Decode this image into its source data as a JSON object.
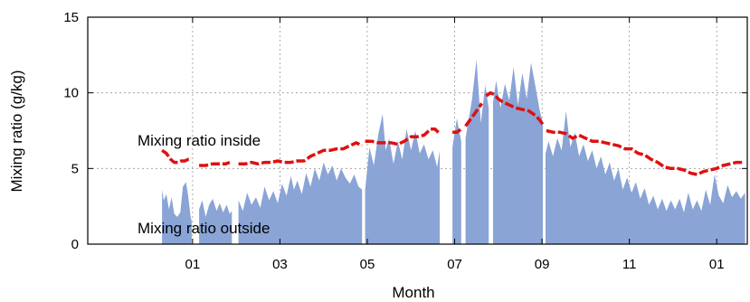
{
  "chart_data": {
    "type": "area",
    "xlabel": "Month",
    "ylabel": "Mixing ratio (g/kg)",
    "ylim": [
      0,
      15
    ],
    "yticks": [
      0,
      5,
      10,
      15
    ],
    "xlim": [
      10.6,
      25.7
    ],
    "xticks": [
      {
        "value": 13,
        "label": "01"
      },
      {
        "value": 15,
        "label": "03"
      },
      {
        "value": 17,
        "label": "05"
      },
      {
        "value": 19,
        "label": "07"
      },
      {
        "value": 21,
        "label": "09"
      },
      {
        "value": 23,
        "label": "11"
      },
      {
        "value": 25,
        "label": "01"
      }
    ],
    "grid": true,
    "colors": {
      "outside": "#8aa4d6",
      "inside": "#dd1111"
    },
    "annotations": {
      "inside": "Mixing ratio inside",
      "outside": "Mixing ratio outside"
    },
    "series": [
      {
        "key": "outside",
        "type": "area",
        "segments": [
          [
            [
              12.3,
              3.6
            ],
            [
              12.34,
              2.9
            ],
            [
              12.4,
              3.3
            ],
            [
              12.46,
              2.3
            ],
            [
              12.52,
              3.1
            ],
            [
              12.58,
              2.0
            ],
            [
              12.65,
              1.8
            ],
            [
              12.72,
              2.1
            ],
            [
              12.78,
              3.8
            ],
            [
              12.85,
              4.1
            ],
            [
              12.9,
              3.2
            ],
            [
              12.95,
              1.9
            ],
            [
              12.98,
              1.5
            ]
          ],
          [
            [
              13.15,
              2.3
            ],
            [
              13.22,
              2.9
            ],
            [
              13.3,
              1.8
            ],
            [
              13.38,
              2.6
            ],
            [
              13.46,
              3.0
            ],
            [
              13.55,
              2.2
            ],
            [
              13.62,
              2.7
            ],
            [
              13.7,
              2.1
            ],
            [
              13.78,
              2.6
            ],
            [
              13.85,
              2.0
            ],
            [
              13.9,
              2.2
            ]
          ],
          [
            [
              14.05,
              2.9
            ],
            [
              14.15,
              2.2
            ],
            [
              14.25,
              3.4
            ],
            [
              14.35,
              2.6
            ],
            [
              14.45,
              3.1
            ],
            [
              14.55,
              2.4
            ],
            [
              14.65,
              3.8
            ],
            [
              14.75,
              2.9
            ],
            [
              14.85,
              3.5
            ],
            [
              14.95,
              2.7
            ],
            [
              15.05,
              4.0
            ],
            [
              15.15,
              3.2
            ],
            [
              15.25,
              4.5
            ],
            [
              15.32,
              3.6
            ],
            [
              15.4,
              4.2
            ],
            [
              15.5,
              3.3
            ],
            [
              15.6,
              4.7
            ],
            [
              15.7,
              3.8
            ],
            [
              15.8,
              5.0
            ],
            [
              15.9,
              4.2
            ],
            [
              16.0,
              5.4
            ],
            [
              16.1,
              4.6
            ],
            [
              16.2,
              5.2
            ],
            [
              16.3,
              4.2
            ],
            [
              16.4,
              5.0
            ],
            [
              16.5,
              4.4
            ],
            [
              16.6,
              4.0
            ],
            [
              16.7,
              4.6
            ],
            [
              16.8,
              3.8
            ],
            [
              16.88,
              3.6
            ]
          ],
          [
            [
              16.95,
              3.6
            ],
            [
              17.05,
              6.4
            ],
            [
              17.15,
              5.2
            ],
            [
              17.25,
              7.2
            ],
            [
              17.35,
              8.6
            ],
            [
              17.42,
              6.2
            ],
            [
              17.5,
              7.0
            ],
            [
              17.6,
              5.3
            ],
            [
              17.7,
              6.8
            ],
            [
              17.8,
              5.6
            ],
            [
              17.9,
              7.6
            ],
            [
              18.0,
              6.2
            ],
            [
              18.1,
              7.5
            ],
            [
              18.2,
              6.0
            ],
            [
              18.3,
              6.6
            ],
            [
              18.4,
              5.6
            ],
            [
              18.5,
              6.2
            ],
            [
              18.6,
              5.1
            ],
            [
              18.66,
              6.2
            ]
          ],
          [
            [
              18.95,
              6.4
            ],
            [
              19.05,
              8.3
            ],
            [
              19.15,
              6.8
            ]
          ],
          [
            [
              19.25,
              7.0
            ],
            [
              19.4,
              9.6
            ],
            [
              19.5,
              12.2
            ],
            [
              19.6,
              8.0
            ],
            [
              19.7,
              10.5
            ],
            [
              19.78,
              9.0
            ]
          ],
          [
            [
              19.88,
              9.4
            ],
            [
              19.95,
              10.8
            ],
            [
              20.05,
              9.0
            ],
            [
              20.15,
              10.6
            ],
            [
              20.25,
              9.5
            ],
            [
              20.35,
              11.7
            ],
            [
              20.45,
              9.2
            ],
            [
              20.55,
              11.3
            ],
            [
              20.65,
              9.6
            ],
            [
              20.75,
              12.0
            ],
            [
              20.85,
              10.4
            ],
            [
              20.95,
              8.8
            ],
            [
              21.02,
              8.0
            ]
          ],
          [
            [
              21.08,
              6.0
            ],
            [
              21.15,
              6.8
            ],
            [
              21.25,
              5.8
            ],
            [
              21.35,
              7.0
            ],
            [
              21.45,
              6.2
            ],
            [
              21.55,
              8.8
            ],
            [
              21.65,
              6.4
            ],
            [
              21.75,
              7.4
            ],
            [
              21.85,
              5.8
            ],
            [
              21.95,
              6.6
            ],
            [
              22.05,
              5.5
            ],
            [
              22.15,
              6.2
            ],
            [
              22.25,
              5.0
            ],
            [
              22.35,
              5.8
            ],
            [
              22.45,
              4.6
            ],
            [
              22.55,
              5.4
            ],
            [
              22.65,
              4.2
            ],
            [
              22.75,
              5.0
            ],
            [
              22.85,
              3.6
            ],
            [
              22.95,
              4.4
            ],
            [
              23.05,
              3.4
            ],
            [
              23.15,
              4.1
            ],
            [
              23.25,
              3.0
            ],
            [
              23.35,
              3.7
            ],
            [
              23.45,
              2.6
            ],
            [
              23.55,
              3.2
            ],
            [
              23.65,
              2.3
            ],
            [
              23.75,
              3.0
            ],
            [
              23.85,
              2.2
            ],
            [
              23.95,
              2.9
            ],
            [
              24.05,
              2.3
            ],
            [
              24.15,
              3.0
            ],
            [
              24.25,
              2.1
            ],
            [
              24.35,
              3.4
            ],
            [
              24.45,
              2.3
            ],
            [
              24.55,
              2.9
            ],
            [
              24.65,
              2.2
            ],
            [
              24.75,
              3.6
            ],
            [
              24.85,
              2.6
            ],
            [
              24.95,
              4.6
            ],
            [
              25.05,
              3.2
            ],
            [
              25.15,
              2.7
            ],
            [
              25.25,
              3.9
            ],
            [
              25.35,
              3.1
            ],
            [
              25.45,
              3.5
            ],
            [
              25.55,
              3.0
            ],
            [
              25.65,
              3.4
            ]
          ]
        ]
      },
      {
        "key": "inside",
        "type": "line",
        "segments": [
          [
            [
              12.3,
              6.2
            ],
            [
              12.4,
              6.0
            ],
            [
              12.5,
              5.6
            ],
            [
              12.58,
              5.4
            ],
            [
              12.66,
              5.4
            ],
            [
              12.74,
              5.5
            ],
            [
              12.82,
              5.5
            ],
            [
              12.9,
              5.6
            ],
            [
              12.95,
              5.6
            ]
          ],
          [
            [
              13.15,
              5.2
            ],
            [
              13.3,
              5.2
            ],
            [
              13.45,
              5.3
            ],
            [
              13.6,
              5.3
            ],
            [
              13.75,
              5.3
            ],
            [
              13.85,
              5.4
            ]
          ],
          [
            [
              14.05,
              5.3
            ],
            [
              14.2,
              5.3
            ],
            [
              14.35,
              5.4
            ],
            [
              14.5,
              5.3
            ],
            [
              14.65,
              5.4
            ],
            [
              14.8,
              5.4
            ],
            [
              14.95,
              5.5
            ],
            [
              15.1,
              5.4
            ],
            [
              15.25,
              5.4
            ],
            [
              15.4,
              5.5
            ],
            [
              15.55,
              5.5
            ],
            [
              15.7,
              5.8
            ],
            [
              15.85,
              6.0
            ],
            [
              16.0,
              6.2
            ],
            [
              16.15,
              6.2
            ],
            [
              16.3,
              6.3
            ],
            [
              16.45,
              6.3
            ],
            [
              16.6,
              6.5
            ],
            [
              16.75,
              6.7
            ],
            [
              16.88,
              6.5
            ]
          ],
          [
            [
              16.95,
              6.8
            ],
            [
              17.1,
              6.8
            ],
            [
              17.25,
              6.7
            ],
            [
              17.4,
              6.7
            ],
            [
              17.55,
              6.7
            ],
            [
              17.7,
              6.6
            ],
            [
              17.85,
              6.8
            ],
            [
              18.0,
              7.1
            ],
            [
              18.15,
              7.1
            ],
            [
              18.3,
              7.2
            ],
            [
              18.45,
              7.6
            ],
            [
              18.55,
              7.6
            ],
            [
              18.66,
              7.3
            ]
          ],
          [
            [
              18.95,
              7.4
            ],
            [
              19.05,
              7.4
            ],
            [
              19.15,
              7.6
            ]
          ],
          [
            [
              19.25,
              7.8
            ],
            [
              19.35,
              8.2
            ],
            [
              19.45,
              8.6
            ],
            [
              19.55,
              9.0
            ],
            [
              19.62,
              9.3
            ]
          ],
          [
            [
              19.72,
              9.8
            ],
            [
              19.82,
              10.0
            ],
            [
              19.9,
              9.9
            ],
            [
              20.0,
              9.6
            ],
            [
              20.1,
              9.4
            ],
            [
              20.25,
              9.2
            ],
            [
              20.4,
              9.0
            ],
            [
              20.55,
              8.9
            ],
            [
              20.7,
              8.8
            ],
            [
              20.85,
              8.5
            ],
            [
              20.95,
              8.2
            ],
            [
              21.02,
              7.9
            ]
          ],
          [
            [
              21.1,
              7.5
            ],
            [
              21.25,
              7.4
            ],
            [
              21.4,
              7.4
            ],
            [
              21.55,
              7.3
            ],
            [
              21.7,
              7.0
            ],
            [
              21.85,
              7.2
            ],
            [
              22.0,
              7.0
            ],
            [
              22.15,
              6.8
            ],
            [
              22.3,
              6.8
            ],
            [
              22.45,
              6.7
            ],
            [
              22.6,
              6.6
            ],
            [
              22.75,
              6.5
            ],
            [
              22.9,
              6.3
            ],
            [
              23.05,
              6.3
            ],
            [
              23.2,
              6.0
            ],
            [
              23.35,
              5.9
            ],
            [
              23.5,
              5.6
            ],
            [
              23.65,
              5.4
            ],
            [
              23.8,
              5.1
            ],
            [
              23.95,
              5.0
            ],
            [
              24.1,
              5.0
            ],
            [
              24.25,
              4.9
            ],
            [
              24.4,
              4.7
            ],
            [
              24.55,
              4.6
            ],
            [
              24.7,
              4.8
            ],
            [
              24.85,
              4.9
            ],
            [
              25.0,
              5.0
            ],
            [
              25.15,
              5.2
            ],
            [
              25.3,
              5.3
            ],
            [
              25.45,
              5.4
            ],
            [
              25.6,
              5.4
            ]
          ]
        ]
      }
    ]
  }
}
